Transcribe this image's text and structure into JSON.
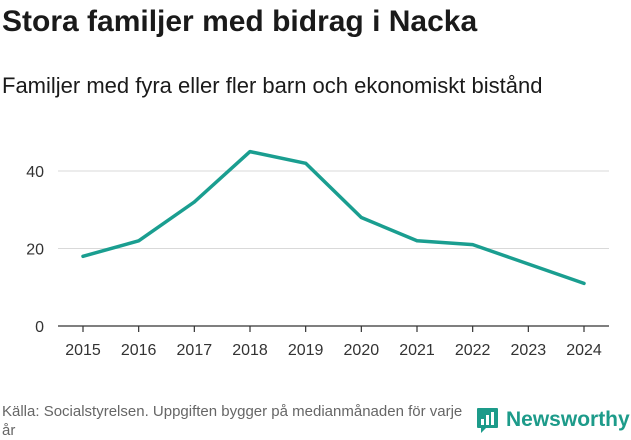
{
  "header": {
    "title": "Stora familjer med bidrag i Nacka",
    "subtitle": "Familjer med fyra eller fler barn och ekonomiskt bistånd"
  },
  "footer": {
    "source": "Källa: Socialstyrelsen. Uppgiften bygger på medianmånaden för varje år",
    "brand": "Newsworthy"
  },
  "colors": {
    "line": "#1a9e90",
    "grid": "#d9d9d9",
    "axis": "#333333",
    "brand": "#1d9b8a"
  },
  "chart_data": {
    "type": "line",
    "title": "Stora familjer med bidrag i Nacka",
    "subtitle": "Familjer med fyra eller fler barn och ekonomiskt bistånd",
    "xlabel": "",
    "ylabel": "",
    "x": [
      2015,
      2016,
      2017,
      2018,
      2019,
      2020,
      2021,
      2022,
      2023,
      2024
    ],
    "series": [
      {
        "values": [
          18,
          22,
          32,
          45,
          42,
          28,
          22,
          21,
          16,
          11
        ]
      }
    ],
    "yticks": [
      0,
      20,
      40
    ],
    "ylim": [
      0,
      50
    ],
    "grid": true,
    "legend": "none"
  }
}
